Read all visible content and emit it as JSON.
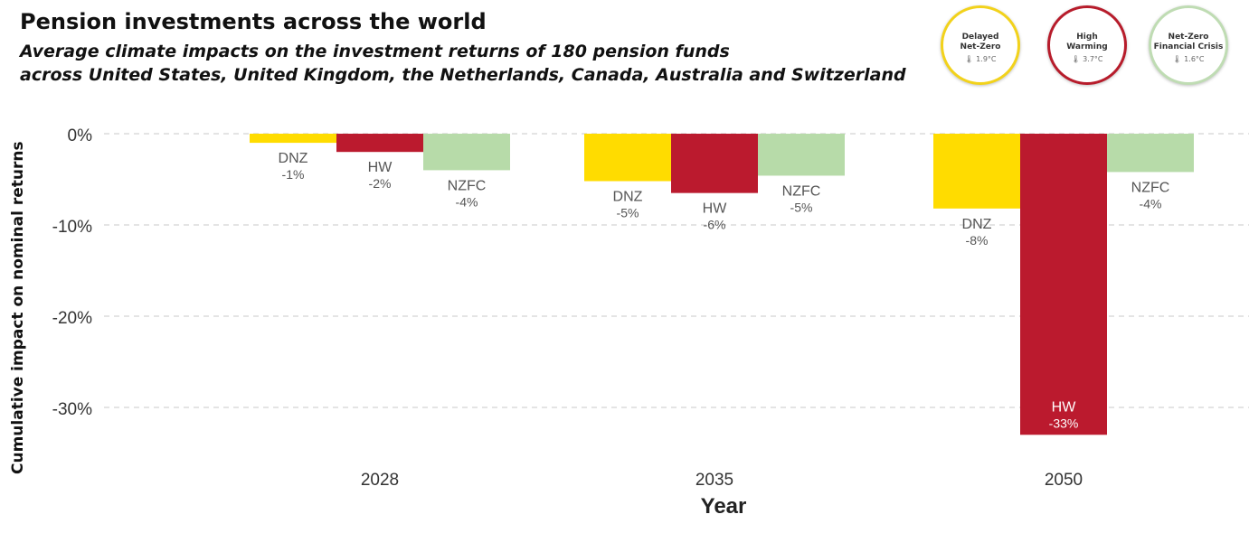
{
  "header": {
    "title": "Pension investments across the world",
    "subtitle_line1": "Average climate impacts on the investment returns of 180 pension funds",
    "subtitle_line2": "across United States, United Kingdom, the Netherlands, Canada, Australia and Switzerland"
  },
  "legend": [
    {
      "line1": "Delayed",
      "line2": "Net-Zero",
      "temp": "🌡 1.9°C",
      "color": "#f2d21b"
    },
    {
      "line1": "High",
      "line2": "Warming",
      "temp": "🌡 3.7°C",
      "color": "#b71c2b"
    },
    {
      "line1": "Net-Zero",
      "line2": "Financial Crisis",
      "temp": "🌡 1.6°C",
      "color": "#bfdcb3"
    }
  ],
  "chart_data": {
    "type": "bar",
    "xlabel": "Year",
    "ylabel": "Cumulative impact on nominal returns",
    "categories": [
      "2028",
      "2035",
      "2050"
    ],
    "ylim": [
      -33,
      0
    ],
    "yticks": [
      {
        "value": 0,
        "label": "0%"
      },
      {
        "value": -10,
        "label": "-10%"
      },
      {
        "value": -20,
        "label": "-20%"
      },
      {
        "value": -30,
        "label": "-30%"
      }
    ],
    "grid": true,
    "series": [
      {
        "name": "DNZ",
        "color": "#ffdc00",
        "values": [
          -1,
          -5.2,
          -8.2
        ],
        "labels": [
          "-1%",
          "-5%",
          "-8%"
        ]
      },
      {
        "name": "HW",
        "color": "#bb1a2e",
        "values": [
          -2,
          -6.5,
          -33
        ],
        "labels": [
          "-2%",
          "-6%",
          "-33%"
        ]
      },
      {
        "name": "NZFC",
        "color": "#b7dba9",
        "values": [
          -4,
          -4.6,
          -4.2
        ],
        "labels": [
          "-4%",
          "-5%",
          "-4%"
        ]
      }
    ]
  }
}
